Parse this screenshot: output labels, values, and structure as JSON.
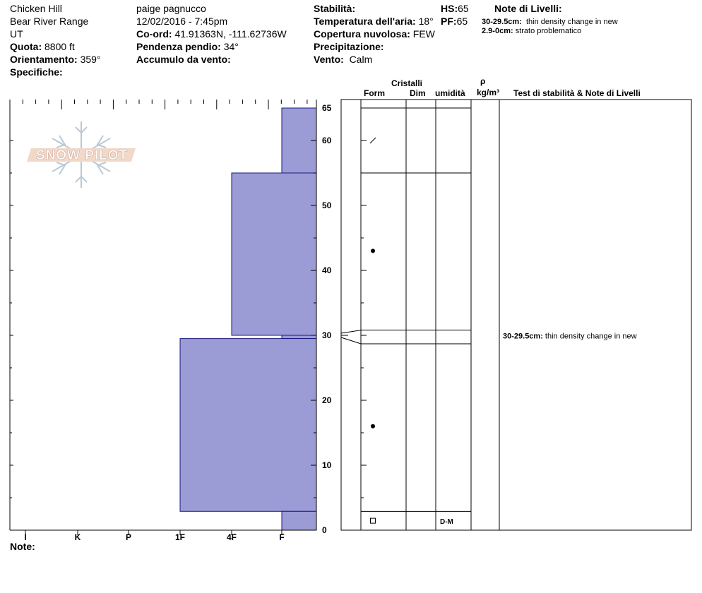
{
  "header": {
    "col1": {
      "location": "Chicken Hill",
      "range": "Bear River Range",
      "state": "UT",
      "elevation_label": "Quota:",
      "elevation_value": "8800 ft",
      "aspect_label": "Orientamento:",
      "aspect_value": "359°",
      "specifics_label": "Specifiche:"
    },
    "col2": {
      "observer": "paige pagnucco",
      "datetime": "12/02/2016 - 7:45pm",
      "coord_label": "Co-ord:",
      "coord_value": "41.91363N, -111.62736W",
      "slope_label": "Pendenza pendio:",
      "slope_value": "34°",
      "wind_loading_label": "Accumulo da vento:"
    },
    "col3": {
      "stability_label": "Stabilità:",
      "air_temp_label": "Temperatura dell'aria:",
      "air_temp_value": "18°",
      "sky_label": "Copertura nuvolosa:",
      "sky_value": "FEW",
      "precip_label": "Precipitazione:",
      "wind_label": "Vento:",
      "wind_value": "Calm",
      "hs_label": "HS:",
      "hs_value": "65",
      "pf_label": "PF:",
      "pf_value": "65"
    },
    "layer_notes": {
      "title": "Note di Livelli:",
      "items": [
        {
          "depth": "30-29.5cm:",
          "text": "thin density change in new"
        },
        {
          "depth": "2.9-0cm:",
          "text": "strato problematico"
        }
      ]
    }
  },
  "logo": {
    "text": "SNOW PILOT"
  },
  "columns": {
    "crystals": "Cristalli",
    "form": "Form",
    "size": "Dim",
    "moisture": "umidità",
    "rho": "ρ",
    "density_unit": "kg/m³",
    "stability_notes": "Test di stabilità & Note di Livelli"
  },
  "note_label": "Note:",
  "chart_data": {
    "type": "snow-profile-hardness",
    "x_categories": [
      "I",
      "K",
      "P",
      "1F",
      "4F",
      "F"
    ],
    "y_ticks": [
      0,
      10,
      20,
      30,
      40,
      50,
      60,
      65
    ],
    "ylim": [
      0,
      65
    ],
    "hardness_layers": [
      {
        "top": 65,
        "bottom": 55,
        "hardness": "F"
      },
      {
        "top": 55,
        "bottom": 30,
        "hardness": "4F"
      },
      {
        "top": 30,
        "bottom": 29.5,
        "hardness": "F"
      },
      {
        "top": 29.5,
        "bottom": 2.9,
        "hardness": "1F"
      },
      {
        "top": 2.9,
        "bottom": 0,
        "hardness": "F"
      }
    ],
    "strat_layers": [
      {
        "top": 65,
        "bottom": 55,
        "form_symbol": "slash",
        "form_depth": 60
      },
      {
        "top": 55,
        "bottom": 30.8,
        "form_symbol": "dot",
        "form_depth": 43
      },
      {
        "top": 30.8,
        "bottom": 28.7,
        "form_symbol": "",
        "form_depth": null
      },
      {
        "top": 28.7,
        "bottom": 2.9,
        "form_symbol": "dot",
        "form_depth": 16
      },
      {
        "top": 2.9,
        "bottom": 0,
        "form_symbol": "square",
        "form_depth": 1.4,
        "moisture": "D-M"
      }
    ],
    "stability_notes": [
      {
        "depth_value": 29.5,
        "depth": "30-29.5cm:",
        "text": "thin density change in new"
      }
    ],
    "fill_color": "#9b9bd6",
    "edge_color": "#1a1a80"
  }
}
